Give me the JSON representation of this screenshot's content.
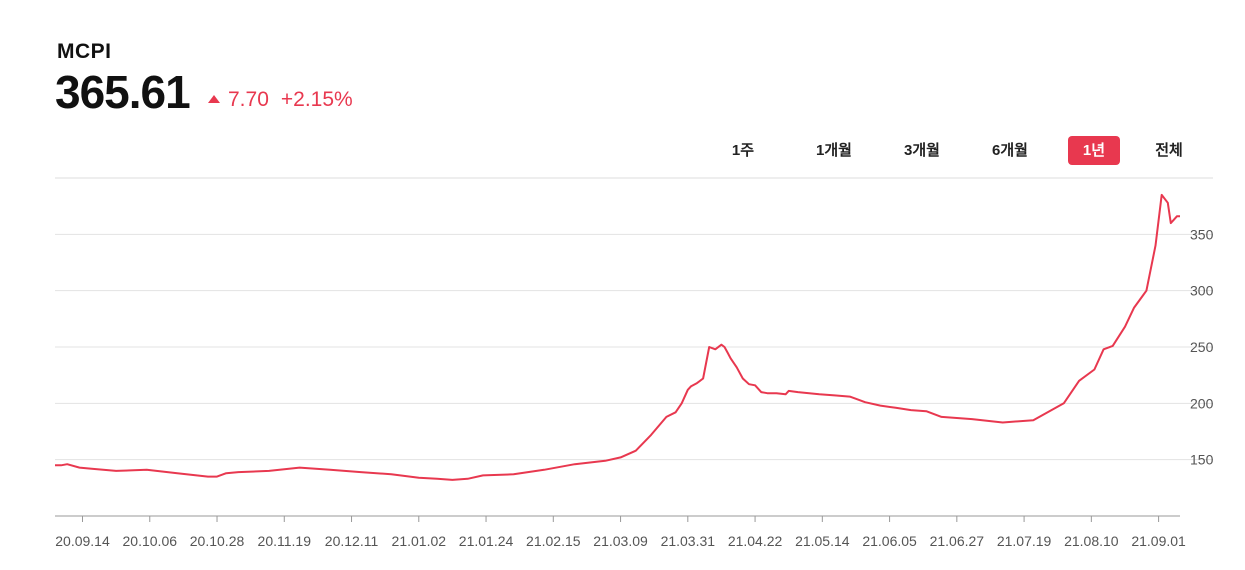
{
  "header": {
    "name": "MCPI",
    "price": "365.61",
    "change": "7.70",
    "change_pct": "+2.15%",
    "up_color": "#e8384f"
  },
  "tabs": [
    {
      "label": "1주",
      "active": false
    },
    {
      "label": "1개월",
      "active": false
    },
    {
      "label": "3개월",
      "active": false
    },
    {
      "label": "6개월",
      "active": false
    },
    {
      "label": "1년",
      "active": true
    },
    {
      "label": "전체",
      "active": false
    }
  ],
  "chart_data": {
    "type": "line",
    "title": "",
    "xlabel": "",
    "ylabel": "",
    "ylim": [
      100,
      400
    ],
    "yticks": [
      150,
      200,
      250,
      300,
      350
    ],
    "x_tick_labels": [
      "20.09.14",
      "20.10.06",
      "20.10.28",
      "20.11.19",
      "20.12.11",
      "21.01.02",
      "21.01.24",
      "21.02.15",
      "21.03.09",
      "21.03.31",
      "21.04.22",
      "21.05.14",
      "21.06.05",
      "21.06.27",
      "21.07.19",
      "21.08.10",
      "21.09.01"
    ],
    "x_tick_offsets": [
      9,
      31,
      53,
      75,
      97,
      119,
      141,
      163,
      185,
      207,
      229,
      251,
      273,
      295,
      317,
      339,
      361
    ],
    "grid": true,
    "color": "#e8384f",
    "series": [
      {
        "x": [
          0,
          2,
          4,
          8,
          12,
          20,
          30,
          40,
          50,
          53,
          56,
          60,
          70,
          80,
          90,
          100,
          110,
          119,
          125,
          130,
          135,
          140,
          150,
          160,
          170,
          180,
          185,
          190,
          195,
          200,
          203,
          205,
          207,
          208,
          210,
          212,
          214,
          216,
          218,
          219,
          220,
          221,
          223,
          225,
          227,
          229,
          231,
          233,
          236,
          239,
          240,
          243,
          250,
          255,
          260,
          262,
          265,
          270,
          275,
          280,
          285,
          290,
          295,
          300,
          310,
          320,
          330,
          335,
          340,
          343,
          346,
          350,
          353,
          357,
          360,
          362,
          364,
          365,
          366,
          367,
          368
        ],
        "y": [
          145,
          145,
          146,
          143,
          142,
          140,
          141,
          138,
          135,
          135,
          138,
          139,
          140,
          143,
          141,
          139,
          137,
          134,
          133,
          132,
          133,
          136,
          137,
          141,
          146,
          149,
          152,
          158,
          172,
          188,
          192,
          200,
          212,
          215,
          218,
          222,
          250,
          248,
          252,
          250,
          245,
          240,
          232,
          222,
          217,
          216,
          210,
          209,
          209,
          208,
          211,
          210,
          208,
          207,
          206,
          204,
          201,
          198,
          196,
          194,
          193,
          188,
          187,
          186,
          183,
          185,
          200,
          220,
          230,
          248,
          251,
          268,
          285,
          300,
          340,
          385,
          378,
          360,
          363,
          366,
          366
        ]
      }
    ]
  }
}
